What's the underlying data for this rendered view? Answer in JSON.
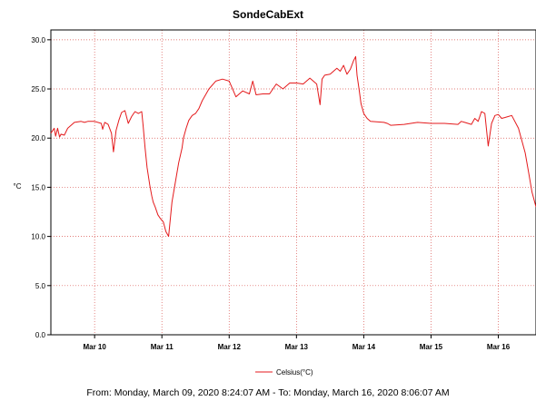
{
  "chart_data": {
    "type": "line",
    "title": "SondeCabExt",
    "ylabel": "°C",
    "xlabel": "",
    "ylim": [
      0,
      31.0
    ],
    "xlim": [
      -0.65,
      6.56
    ],
    "yticks": [
      "0.0",
      "5.0",
      "10.0",
      "15.0",
      "20.0",
      "25.0",
      "30.0"
    ],
    "xticks": [
      "Mar 10",
      "Mar 11",
      "Mar 12",
      "Mar 13",
      "Mar 14",
      "Mar 15",
      "Mar 16"
    ],
    "grid": true,
    "legend_position": "bottom-center",
    "series": [
      {
        "name": "Celsius(°C)",
        "color": "#e41a1c",
        "x": [
          -0.65,
          -0.6,
          -0.58,
          -0.55,
          -0.52,
          -0.5,
          -0.45,
          -0.4,
          -0.3,
          -0.2,
          -0.15,
          -0.1,
          0.0,
          0.1,
          0.12,
          0.15,
          0.2,
          0.25,
          0.28,
          0.32,
          0.36,
          0.4,
          0.45,
          0.5,
          0.55,
          0.6,
          0.65,
          0.7,
          0.72,
          0.75,
          0.78,
          0.82,
          0.85,
          0.87,
          0.9,
          0.92,
          0.94,
          0.98,
          1.02,
          1.06,
          1.1,
          1.15,
          1.2,
          1.25,
          1.3,
          1.32,
          1.34,
          1.36,
          1.4,
          1.45,
          1.5,
          1.55,
          1.6,
          1.7,
          1.8,
          1.9,
          2.0,
          2.1,
          2.2,
          2.3,
          2.35,
          2.4,
          2.5,
          2.6,
          2.7,
          2.8,
          2.85,
          2.9,
          3.0,
          3.1,
          3.2,
          3.3,
          3.35,
          3.38,
          3.42,
          3.5,
          3.6,
          3.65,
          3.7,
          3.75,
          3.8,
          3.85,
          3.88,
          3.9,
          3.93,
          3.96,
          4.0,
          4.05,
          4.1,
          4.3,
          4.35,
          4.4,
          4.6,
          4.8,
          5.0,
          5.2,
          5.4,
          5.45,
          5.5,
          5.6,
          5.65,
          5.7,
          5.75,
          5.8,
          5.85,
          5.9,
          5.95,
          6.0,
          6.05,
          6.1,
          6.2,
          6.3,
          6.4,
          6.45,
          6.5,
          6.56
        ],
        "values": [
          20.5,
          21.0,
          20.2,
          21.0,
          20.1,
          20.4,
          20.3,
          21.0,
          21.6,
          21.7,
          21.6,
          21.7,
          21.7,
          21.5,
          20.9,
          21.6,
          21.4,
          20.5,
          18.6,
          20.8,
          21.8,
          22.6,
          22.8,
          21.5,
          22.2,
          22.7,
          22.5,
          22.7,
          21.3,
          19.0,
          17.0,
          15.2,
          14.1,
          13.5,
          13.0,
          12.6,
          12.2,
          11.8,
          11.5,
          10.5,
          10.0,
          13.5,
          15.5,
          17.5,
          19.0,
          20.0,
          20.5,
          21.0,
          21.8,
          22.3,
          22.5,
          23.0,
          23.8,
          25.0,
          25.8,
          26.0,
          25.8,
          24.2,
          24.8,
          24.5,
          25.8,
          24.4,
          24.5,
          24.5,
          25.5,
          25.0,
          25.3,
          25.6,
          25.6,
          25.5,
          26.1,
          25.5,
          23.4,
          26.0,
          26.4,
          26.5,
          27.1,
          26.8,
          27.4,
          26.5,
          27.0,
          27.9,
          28.3,
          26.4,
          25.0,
          23.5,
          22.5,
          22.0,
          21.7,
          21.6,
          21.5,
          21.3,
          21.4,
          21.6,
          21.5,
          21.5,
          21.4,
          21.7,
          21.6,
          21.4,
          22.0,
          21.7,
          22.7,
          22.5,
          19.2,
          21.5,
          22.3,
          22.4,
          22.0,
          22.1,
          22.3,
          21.0,
          18.5,
          16.5,
          14.5,
          13.0
        ]
      }
    ]
  },
  "footer": "From: Monday, March 09, 2020 8:24:07 AM  -  To: Monday, March 16, 2020 8:06:07 AM"
}
